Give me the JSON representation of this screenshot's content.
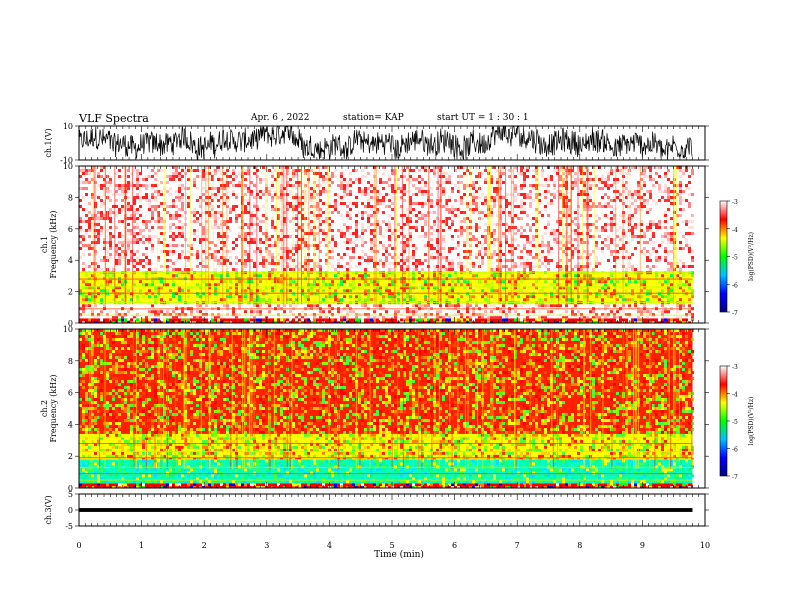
{
  "header": {
    "title": "VLF Spectra",
    "date": "Apr. 6 , 2022",
    "station": "station= KAP",
    "start_ut": "start  UT =  1 : 30 : 1"
  },
  "chart_data": [
    {
      "type": "line",
      "panel": "ch1-waveform",
      "ylabel": "ch.1(V)",
      "ylim": [
        -10,
        10
      ],
      "y_tick_labels": [
        "10",
        "-10"
      ],
      "xlim": [
        0,
        10
      ],
      "x_data_max_min": 9.8,
      "grid": false,
      "series": [
        {
          "color": "#000000",
          "amplitude_range": [
            -9.5,
            9.5
          ]
        }
      ]
    },
    {
      "type": "heatmap",
      "panel": "ch1-spectrogram",
      "ylabel": "ch.1\nFrequency  (kHz)",
      "ylim": [
        0,
        10
      ],
      "y_tick_labels": [
        "0",
        "2",
        "4",
        "6",
        "8",
        "10"
      ],
      "xlim": [
        0,
        10
      ],
      "x_data_max_min": 9.8,
      "bands": [
        {
          "f_khz": [
            0.0,
            0.3
          ],
          "level": "mixed"
        },
        {
          "f_khz": [
            0.3,
            1.2
          ],
          "level": "white/red"
        },
        {
          "f_khz": [
            1.2,
            3.3
          ],
          "level": "green/yellow"
        },
        {
          "f_khz": [
            3.3,
            10.0
          ],
          "level": "white/red"
        }
      ]
    },
    {
      "type": "heatmap",
      "panel": "ch2-spectrogram",
      "ylabel": "ch.2\nFrequency  (kHz)",
      "ylim": [
        0,
        10
      ],
      "y_tick_labels": [
        "0",
        "2",
        "4",
        "6",
        "8",
        "10"
      ],
      "xlim": [
        0,
        10
      ],
      "x_data_max_min": 9.8,
      "bands": [
        {
          "f_khz": [
            0.0,
            0.3
          ],
          "level": "mixed"
        },
        {
          "f_khz": [
            0.3,
            1.8
          ],
          "level": "cyan/green"
        },
        {
          "f_khz": [
            1.8,
            3.4
          ],
          "level": "yellow/green"
        },
        {
          "f_khz": [
            3.4,
            10.0
          ],
          "level": "red/yellow/green"
        }
      ]
    },
    {
      "type": "line",
      "panel": "ch3-waveform",
      "ylabel": "ch.3(V)",
      "ylim": [
        -5,
        5
      ],
      "y_tick_labels": [
        "5",
        "0",
        "-5"
      ],
      "xlim": [
        0,
        10
      ],
      "x_data_max_min": 9.8,
      "series": [
        {
          "color": "#000000",
          "amplitude_range": [
            -0.6,
            0.6
          ]
        }
      ]
    }
  ],
  "x_axis": {
    "label": "Time  (min)",
    "ticks": [
      "0",
      "1",
      "2",
      "3",
      "4",
      "5",
      "6",
      "7",
      "8",
      "9",
      "10"
    ]
  },
  "colorbar": {
    "label": "log(PSD)(V²/Hz)",
    "range": [
      -7,
      -3
    ],
    "ticks": [
      "-3",
      "-4",
      "-5",
      "-6",
      "-7"
    ],
    "colors": [
      "#000080",
      "#0000ff",
      "#00c0ff",
      "#00ff00",
      "#ffff00",
      "#ff0000",
      "#ffffff"
    ]
  }
}
